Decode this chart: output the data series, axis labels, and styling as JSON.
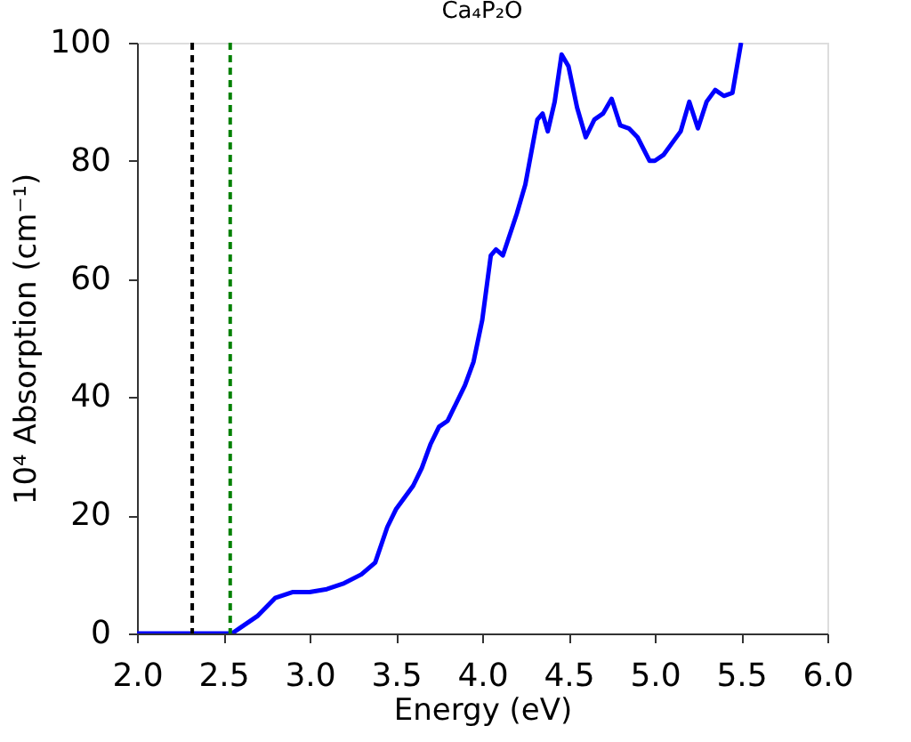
{
  "chart_data": {
    "type": "line",
    "title": "Ca₄P₂O",
    "xlabel": "Energy (eV)",
    "ylabel": "10⁴  Absorption (cm⁻¹)",
    "series": [
      {
        "color": "#0000ff",
        "x": [
          2.0,
          2.55,
          2.6,
          2.7,
          2.8,
          2.85,
          2.9,
          3.0,
          3.1,
          3.2,
          3.3,
          3.38,
          3.45,
          3.5,
          3.6,
          3.65,
          3.7,
          3.75,
          3.8,
          3.9,
          3.95,
          4.0,
          4.05,
          4.08,
          4.12,
          4.2,
          4.25,
          4.32,
          4.35,
          4.38,
          4.42,
          4.46,
          4.5,
          4.55,
          4.6,
          4.65,
          4.7,
          4.75,
          4.8,
          4.85,
          4.9,
          4.97,
          5.0,
          5.05,
          5.1,
          5.15,
          5.2,
          5.25,
          5.3,
          5.35,
          5.4,
          5.45,
          5.5
        ],
        "values": [
          0,
          0,
          1,
          3,
          6,
          6.5,
          7,
          7,
          7.5,
          8.5,
          10,
          12,
          18,
          21,
          25,
          28,
          32,
          35,
          36,
          42,
          46,
          53,
          64,
          65,
          64,
          71,
          76,
          87,
          88,
          85,
          90,
          98,
          96,
          89,
          84,
          87,
          88,
          90.5,
          86,
          85.5,
          84,
          80,
          80,
          81,
          83,
          85,
          90,
          85.5,
          90,
          92,
          91,
          91.5,
          100
        ]
      }
    ],
    "xlim": [
      2.0,
      6.0
    ],
    "ylim": [
      0,
      100
    ],
    "xticks": [
      {
        "value": 2.0,
        "label": "2.0"
      },
      2.5,
      {
        "value": 3.0,
        "label": "3.0"
      },
      3.5,
      {
        "value": 4.0,
        "label": "4.0"
      },
      4.5,
      {
        "value": 5.0,
        "label": "5.0"
      },
      5.5,
      {
        "value": 6.0,
        "label": "6.0"
      }
    ],
    "yticks": [
      0,
      20,
      40,
      60,
      80,
      100
    ],
    "ref_lines": [
      {
        "axis": "x",
        "value": 2.32,
        "color": "#000000",
        "line_style": "dashed"
      },
      {
        "axis": "x",
        "value": 2.54,
        "color": "#008000",
        "line_style": "dashed"
      }
    ],
    "grid": false,
    "marker": "none",
    "line_style": "solid"
  }
}
